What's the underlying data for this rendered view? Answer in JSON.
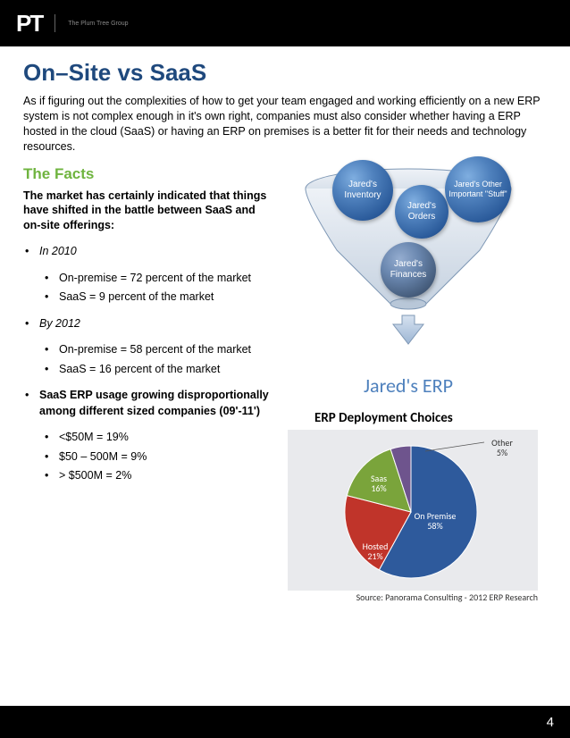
{
  "header": {
    "logo_letters": "PT",
    "logo_sub": "The Plum Tree Group"
  },
  "title": "On–Site vs SaaS",
  "intro": "As if figuring out the complexities of how to get your team engaged and working efficiently on a new ERP system is not complex enough in it's own right, companies must also consider whether having a ERP hosted in the cloud (SaaS) or having an ERP on premises is a better fit for their needs and technology resources.",
  "facts_heading": "The Facts",
  "facts_intro": "The market has certainly indicated that things have shifted in the battle between SaaS and on-site offerings:",
  "bullets": {
    "b1": "In 2010",
    "b1a": "On-premise = 72 percent of the market",
    "b1b": "SaaS = 9 percent of the market",
    "b2": "By 2012",
    "b2a": "On-premise = 58 percent of the market",
    "b2b": "SaaS = 16 percent of the market",
    "b3": "SaaS ERP usage growing disproportionally among different sized companies (09'-11')",
    "b3a": "<$50M = 19%",
    "b3b": "$50 – 500M = 9%",
    "b3c": "> $500M = 2%"
  },
  "funnel": {
    "spheres": {
      "s1": "Jared's Inventory",
      "s2": "Jared's Orders",
      "s3": "Jared's Other Important \"Stuff\"",
      "s4": "Jared's Finances"
    },
    "label": "Jared's ERP",
    "sphere_color_light": "#7faee0",
    "sphere_color_mid": "#4f81bd",
    "sphere_color_dark": "#1a3a6a",
    "funnel_fill": "#d9e2ec",
    "funnel_stroke": "#7f98b5",
    "arrow_fill": "#b8cce4"
  },
  "pie": {
    "title": "ERP Deployment Choices",
    "source": "Source: Panorama Consulting - 2012 ERP Research",
    "slices": [
      {
        "label": "On Premise",
        "value": 58,
        "color": "#2e5a9c"
      },
      {
        "label": "Hosted",
        "value": 21,
        "color": "#c0342a"
      },
      {
        "label": "Saas",
        "value": 16,
        "color": "#7aa43b"
      },
      {
        "label": "Other",
        "value": 5,
        "color": "#6e548d"
      }
    ],
    "label_on_premise": "On Premise\n58%",
    "label_hosted": "Hosted\n21%",
    "label_saas": "Saas\n16%",
    "label_other": "Other\n5%",
    "label_color": "#333333",
    "label_fontsize": 10,
    "background": "#e9eaed"
  },
  "page_number": "4"
}
